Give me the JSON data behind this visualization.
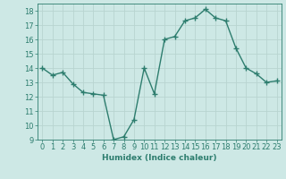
{
  "x": [
    0,
    1,
    2,
    3,
    4,
    5,
    6,
    7,
    8,
    9,
    10,
    11,
    12,
    13,
    14,
    15,
    16,
    17,
    18,
    19,
    20,
    21,
    22,
    23
  ],
  "y": [
    14.0,
    13.5,
    13.7,
    12.9,
    12.3,
    12.2,
    12.1,
    9.0,
    9.2,
    10.4,
    14.0,
    12.2,
    16.0,
    16.2,
    17.3,
    17.5,
    18.1,
    17.5,
    17.3,
    15.4,
    14.0,
    13.6,
    13.0,
    13.1
  ],
  "line_color": "#2d7d6e",
  "marker": "+",
  "marker_size": 4,
  "xlabel": "Humidex (Indice chaleur)",
  "ylim": [
    9,
    18.5
  ],
  "xlim": [
    -0.5,
    23.5
  ],
  "yticks": [
    9,
    10,
    11,
    12,
    13,
    14,
    15,
    16,
    17,
    18
  ],
  "xticks": [
    0,
    1,
    2,
    3,
    4,
    5,
    6,
    7,
    8,
    9,
    10,
    11,
    12,
    13,
    14,
    15,
    16,
    17,
    18,
    19,
    20,
    21,
    22,
    23
  ],
  "bg_color": "#cde8e5",
  "grid_color": "#b8d4d0",
  "line_width": 1.0,
  "tick_color": "#2d7d6e",
  "label_fontsize": 6.0,
  "xlabel_fontsize": 6.5
}
